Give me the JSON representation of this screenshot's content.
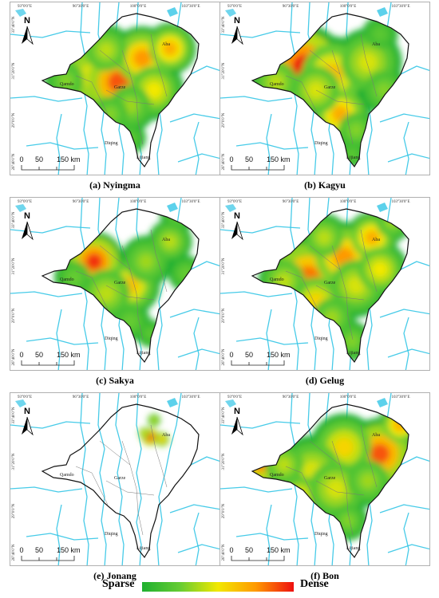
{
  "lon_ticks": [
    "93°0'0\"E",
    "96°30'0\"E",
    "100°0'0\"E",
    "103°30'0\"E"
  ],
  "lat_ticks": [
    "33°40'0\"N",
    "31°20'0\"N",
    "29°0'0\"N",
    "26°40'0\"N"
  ],
  "places": [
    "Aba",
    "Qamdo",
    "Garze",
    "Diqing",
    "Lijiang"
  ],
  "north_label": "N",
  "scale": {
    "zero": "0",
    "mid": "50",
    "end": "150 km"
  },
  "panels": [
    {
      "caption": "(a) Nyingma",
      "sect": "Nyingma"
    },
    {
      "caption": "(b) Kagyu",
      "sect": "Kagyu"
    },
    {
      "caption": "(c) Sakya",
      "sect": "Sakya"
    },
    {
      "caption": "(d) Gelug",
      "sect": "Gelug"
    },
    {
      "caption": "(e) Jonang",
      "sect": "Jonang"
    },
    {
      "caption": "(f) Bon",
      "sect": "Bon"
    }
  ],
  "legend": {
    "low": "Sparse",
    "high": "Dense",
    "colors": [
      "#1fb030",
      "#66cc33",
      "#f2e800",
      "#ff9900",
      "#ee1010"
    ]
  },
  "colors": {
    "river": "#33c5e6",
    "border": "#111111",
    "hot": "#ee1010",
    "warm": "#ff9900",
    "mid": "#f2e800",
    "base": "#1fb030"
  }
}
